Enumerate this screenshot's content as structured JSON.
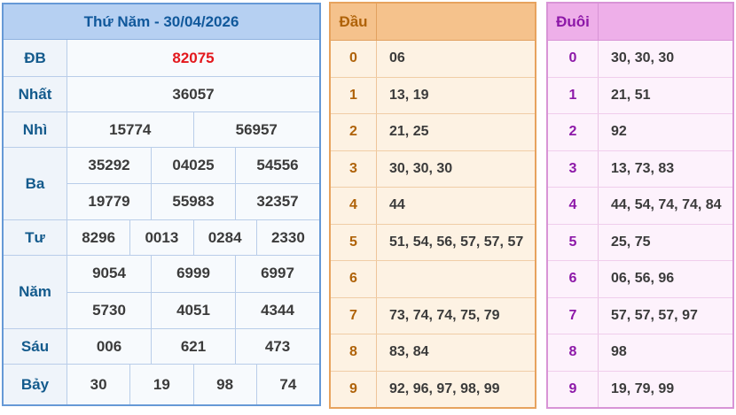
{
  "results": {
    "title": "Thứ Năm - 30/04/2026",
    "rows": [
      {
        "label": "ĐB",
        "special": true,
        "lines": [
          [
            "82075"
          ]
        ]
      },
      {
        "label": "Nhất",
        "special": false,
        "lines": [
          [
            "36057"
          ]
        ]
      },
      {
        "label": "Nhì",
        "special": false,
        "lines": [
          [
            "15774",
            "56957"
          ]
        ]
      },
      {
        "label": "Ba",
        "special": false,
        "lines": [
          [
            "35292",
            "04025",
            "54556"
          ],
          [
            "19779",
            "55983",
            "32357"
          ]
        ]
      },
      {
        "label": "Tư",
        "special": false,
        "lines": [
          [
            "8296",
            "0013",
            "0284",
            "2330"
          ]
        ]
      },
      {
        "label": "Năm",
        "special": false,
        "lines": [
          [
            "9054",
            "6999",
            "6997"
          ],
          [
            "5730",
            "4051",
            "4344"
          ]
        ]
      },
      {
        "label": "Sáu",
        "special": false,
        "lines": [
          [
            "006",
            "621",
            "473"
          ]
        ]
      },
      {
        "label": "Bảy",
        "special": false,
        "lines": [
          [
            "30",
            "19",
            "98",
            "74"
          ]
        ]
      }
    ]
  },
  "dau": {
    "header": "Đầu",
    "rows": [
      {
        "digit": "0",
        "values": "06"
      },
      {
        "digit": "1",
        "values": "13, 19"
      },
      {
        "digit": "2",
        "values": "21, 25"
      },
      {
        "digit": "3",
        "values": "30, 30, 30"
      },
      {
        "digit": "4",
        "values": "44"
      },
      {
        "digit": "5",
        "values": "51, 54, 56, 57, 57, 57"
      },
      {
        "digit": "6",
        "values": ""
      },
      {
        "digit": "7",
        "values": "73, 74, 74, 75, 79"
      },
      {
        "digit": "8",
        "values": "83, 84"
      },
      {
        "digit": "9",
        "values": "92, 96, 97, 98, 99"
      }
    ]
  },
  "duoi": {
    "header": "Đuôi",
    "rows": [
      {
        "digit": "0",
        "values": "30, 30, 30"
      },
      {
        "digit": "1",
        "values": "21, 51"
      },
      {
        "digit": "2",
        "values": "92"
      },
      {
        "digit": "3",
        "values": "13, 73, 83"
      },
      {
        "digit": "4",
        "values": "44, 54, 74, 74, 84"
      },
      {
        "digit": "5",
        "values": "25, 75"
      },
      {
        "digit": "6",
        "values": "06, 56, 96"
      },
      {
        "digit": "7",
        "values": "57, 57, 57, 97"
      },
      {
        "digit": "8",
        "values": "98"
      },
      {
        "digit": "9",
        "values": "19, 79, 99"
      }
    ]
  },
  "colors": {
    "results_border": "#6699d6",
    "results_header_bg": "#b6d0f2",
    "results_header_text": "#10589b",
    "results_label_text": "#135a8c",
    "special_prize_text": "#e3181d",
    "value_text": "#3b3b3b",
    "dau_border": "#e7a35e",
    "dau_header_bg": "#f5c28c",
    "dau_header_text": "#6b3300",
    "dau_digit_text": "#af6208",
    "dau_body_bg": "#fdf2e3",
    "duoi_border": "#d894d6",
    "duoi_header_bg": "#eeafe9",
    "duoi_header_text": "#5c1a74",
    "duoi_digit_text": "#8d18a8",
    "duoi_body_bg": "#fdf2fc"
  }
}
